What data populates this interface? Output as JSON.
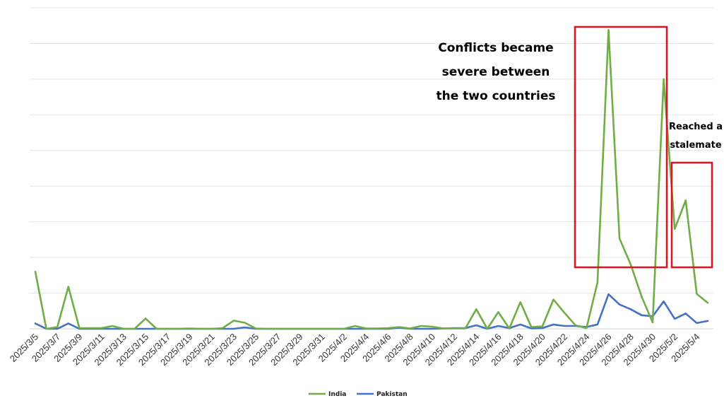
{
  "chart_data": {
    "type": "line",
    "title": "",
    "xlabel": "",
    "ylabel": "",
    "x": [
      "2025/3/5",
      "2025/3/6",
      "2025/3/7",
      "2025/3/8",
      "2025/3/9",
      "2025/3/10",
      "2025/3/11",
      "2025/3/12",
      "2025/3/13",
      "2025/3/14",
      "2025/3/15",
      "2025/3/16",
      "2025/3/17",
      "2025/3/18",
      "2025/3/19",
      "2025/3/20",
      "2025/3/21",
      "2025/3/22",
      "2025/3/23",
      "2025/3/24",
      "2025/3/25",
      "2025/3/26",
      "2025/3/27",
      "2025/3/28",
      "2025/3/29",
      "2025/3/30",
      "2025/3/31",
      "2025/4/1",
      "2025/4/2",
      "2025/4/3",
      "2025/4/4",
      "2025/4/5",
      "2025/4/6",
      "2025/4/7",
      "2025/4/8",
      "2025/4/9",
      "2025/4/10",
      "2025/4/11",
      "2025/4/12",
      "2025/4/13",
      "2025/4/14",
      "2025/4/15",
      "2025/4/16",
      "2025/4/17",
      "2025/4/18",
      "2025/4/19",
      "2025/4/20",
      "2025/4/21",
      "2025/4/22",
      "2025/4/23",
      "2025/4/24",
      "2025/4/25",
      "2025/4/26",
      "2025/4/27",
      "2025/4/28",
      "2025/4/29",
      "2025/4/30",
      "2025/5/1",
      "2025/5/2",
      "2025/5/3",
      "2025/5/4",
      "2025/5/5"
    ],
    "tick_labels": [
      "2025/3/5",
      "2025/3/7",
      "2025/3/9",
      "2025/3/11",
      "2025/3/13",
      "2025/3/15",
      "2025/3/17",
      "2025/3/19",
      "2025/3/21",
      "2025/3/23",
      "2025/3/25",
      "2025/3/27",
      "2025/3/29",
      "2025/3/31",
      "2025/4/2",
      "2025/4/4",
      "2025/4/6",
      "2025/4/8",
      "2025/4/10",
      "2025/4/12",
      "2025/4/14",
      "2025/4/16",
      "2025/4/18",
      "2025/4/20",
      "2025/4/22",
      "2025/4/24",
      "2025/4/26",
      "2025/4/28",
      "2025/4/30",
      "2025/5/2",
      "2025/5/4"
    ],
    "ylim": [
      0,
      900
    ],
    "grid": true,
    "legend_position": "bottom-center",
    "series": [
      {
        "name": "India",
        "color": "#70ad47",
        "values": [
          160,
          0,
          5,
          118,
          2,
          2,
          2,
          8,
          0,
          0,
          29,
          0,
          0,
          0,
          1,
          0,
          0,
          2,
          23,
          17,
          1,
          0,
          0,
          0,
          0,
          0,
          0,
          0,
          0,
          8,
          1,
          1,
          2,
          5,
          1,
          8,
          6,
          1,
          1,
          1,
          55,
          0,
          47,
          1,
          75,
          5,
          7,
          82,
          45,
          10,
          2,
          130,
          838,
          253,
          181,
          90,
          18,
          700,
          280,
          360,
          98,
          73
        ]
      },
      {
        "name": "Pakistan",
        "color": "#4472c4",
        "values": [
          15,
          0,
          0,
          15,
          0,
          0,
          0,
          0,
          0,
          0,
          0,
          0,
          0,
          0,
          0,
          0,
          0,
          0,
          0,
          4,
          0,
          0,
          0,
          0,
          0,
          0,
          0,
          0,
          0,
          0,
          0,
          0,
          0,
          3,
          0,
          0,
          0,
          1,
          2,
          2,
          10,
          0,
          8,
          2,
          12,
          1,
          2,
          12,
          8,
          8,
          5,
          12,
          97,
          68,
          55,
          38,
          35,
          77,
          28,
          43,
          16,
          22
        ]
      }
    ],
    "annotations": [
      {
        "lines": [
          "Conflicts became",
          "severe between",
          "the two countries"
        ]
      },
      {
        "lines": [
          "Reached a",
          "stalemate"
        ]
      }
    ],
    "highlight_color": "#e0141e"
  }
}
